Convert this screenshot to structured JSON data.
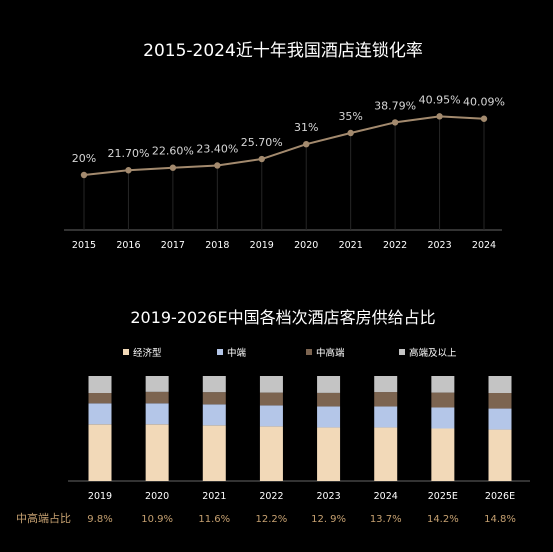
{
  "charts": {
    "line_title": "2015-2024近十年我国酒店连锁化率",
    "bar_title": "2019-2026E中国各档次酒店客房供给占比",
    "row_label": "中高端占比",
    "line_color": "#a38a6e",
    "row_label_color": "#c5a070"
  },
  "chart_data": [
    {
      "type": "line",
      "title": "2015-2024近十年我国酒店连锁化率",
      "x": [
        "2015",
        "2016",
        "2017",
        "2018",
        "2019",
        "2020",
        "2021",
        "2022",
        "2023",
        "2024"
      ],
      "values": [
        20,
        21.7,
        22.6,
        23.4,
        25.7,
        31,
        35,
        38.79,
        40.95,
        40.09
      ],
      "labels": [
        "20%",
        "21.70%",
        "22.60%",
        "23.40%",
        "25.70%",
        "31%",
        "35%",
        "38.79%",
        "40.95%",
        "40.09%"
      ]
    },
    {
      "type": "bar",
      "stacked": true,
      "title": "2019-2026E中国各档次酒店客房供给占比",
      "categories": [
        "2019",
        "2020",
        "2021",
        "2022",
        "2023",
        "2024",
        "2025E",
        "2026E"
      ],
      "series": [
        {
          "name": "经济型",
          "color": "#f2d9b8",
          "values": [
            54,
            54,
            53,
            52,
            51,
            51,
            50,
            49
          ]
        },
        {
          "name": "中端",
          "color": "#b4c6e8",
          "values": [
            20,
            20,
            20,
            20,
            20,
            20,
            20,
            20
          ]
        },
        {
          "name": "中高端",
          "color": "#7c6450",
          "values": [
            9.8,
            10.9,
            11.6,
            12.2,
            12.9,
            13.7,
            14.2,
            14.8
          ]
        },
        {
          "name": "高端及以上",
          "color": "#c4c4c4",
          "values": [
            16.2,
            15.1,
            15.4,
            15.8,
            16.1,
            15.3,
            15.8,
            16.2
          ]
        }
      ],
      "row_values": [
        "9.8%",
        "10.9%",
        "11.6%",
        "12.2%",
        "12. 9%",
        "13.7%",
        "14.2%",
        "14.8%"
      ]
    }
  ]
}
